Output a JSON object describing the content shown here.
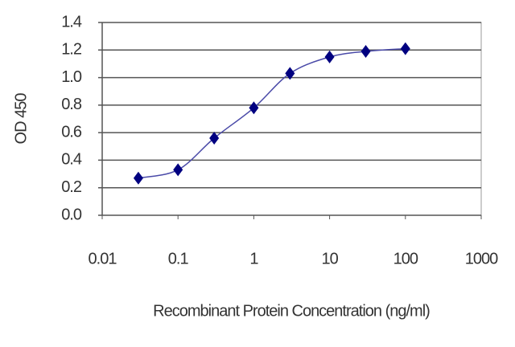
{
  "chart_data": {
    "type": "line",
    "x_label": "Recombinant Protein Concentration (ng/ml)",
    "y_label": "OD 450",
    "x": [
      0.03,
      0.1,
      0.3,
      1,
      3,
      10,
      30,
      100
    ],
    "series": [
      {
        "color": "#000080",
        "line_color": "#4a4aa8",
        "values": [
          0.27,
          0.33,
          0.56,
          0.78,
          1.03,
          1.15,
          1.19,
          1.21
        ]
      }
    ],
    "xscale": "log",
    "xlim": [
      0.01,
      1000
    ],
    "xticks": [
      0.01,
      0.1,
      1,
      10,
      100,
      1000
    ],
    "ylim": [
      0,
      1.4
    ],
    "yticks": [
      {
        "value": 0,
        "label": "0.0"
      },
      0.2,
      0.4,
      0.6,
      0.8,
      {
        "value": 1,
        "label": "1.0"
      },
      1.2,
      1.4
    ],
    "grid": true
  }
}
